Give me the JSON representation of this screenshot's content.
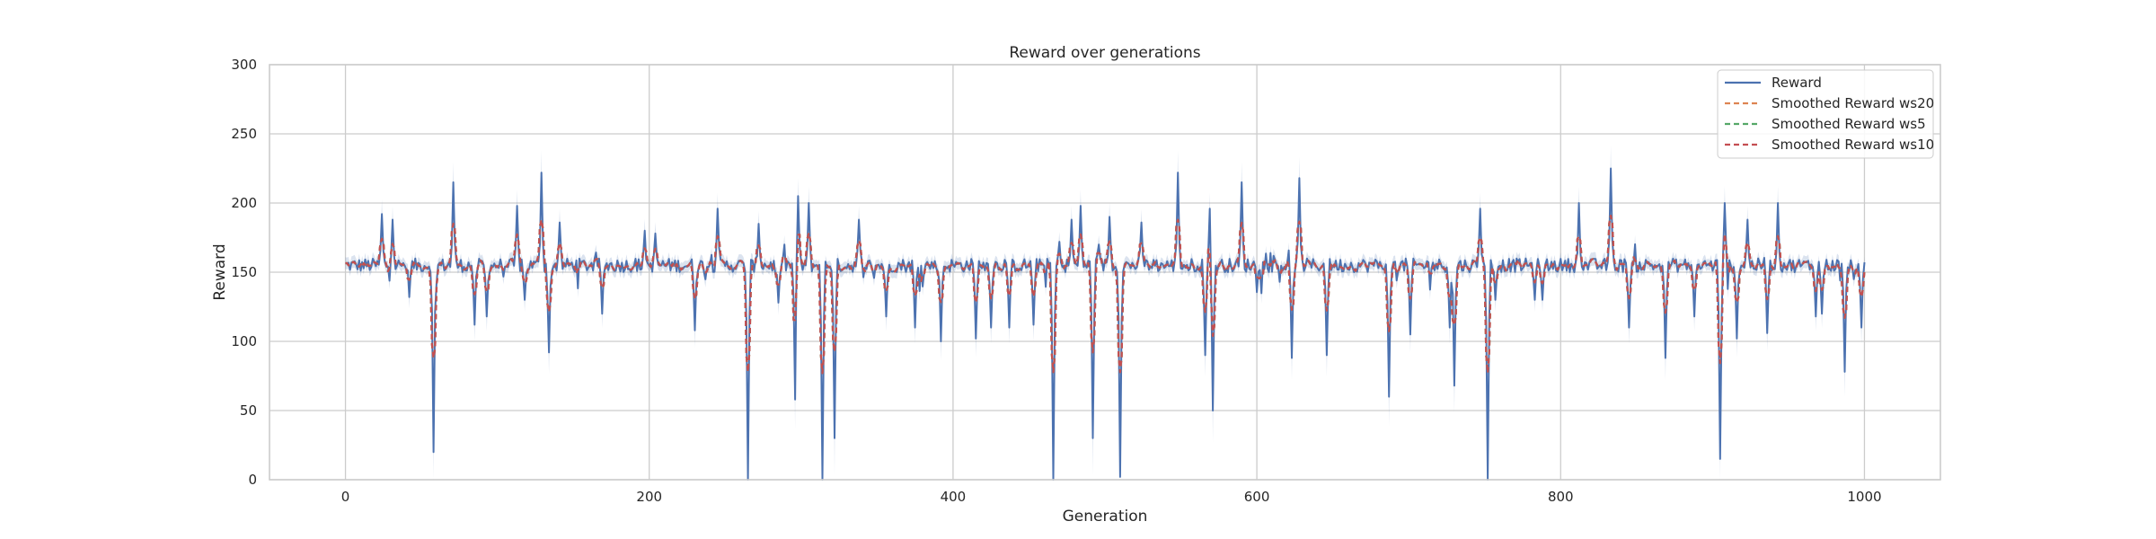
{
  "chart_data": {
    "type": "line",
    "title": "Reward over generations",
    "xlabel": "Generation",
    "ylabel": "Reward",
    "xlim": [
      -50,
      1050
    ],
    "ylim": [
      0,
      300
    ],
    "xticks": [
      0,
      200,
      400,
      600,
      800,
      1000
    ],
    "yticks": [
      0,
      50,
      100,
      150,
      200,
      250,
      300
    ],
    "grid": true,
    "legend_position": "top-right",
    "baseline": 155,
    "spikes": [
      [
        24,
        192
      ],
      [
        31,
        188
      ],
      [
        42,
        132
      ],
      [
        58,
        20
      ],
      [
        71,
        215
      ],
      [
        85,
        112
      ],
      [
        93,
        118
      ],
      [
        113,
        198
      ],
      [
        118,
        130
      ],
      [
        129,
        222
      ],
      [
        134,
        92
      ],
      [
        141,
        186
      ],
      [
        169,
        120
      ],
      [
        197,
        180
      ],
      [
        204,
        178
      ],
      [
        230,
        108
      ],
      [
        245,
        196
      ],
      [
        265,
        0
      ],
      [
        272,
        185
      ],
      [
        285,
        128
      ],
      [
        296,
        58
      ],
      [
        298,
        205
      ],
      [
        305,
        200
      ],
      [
        314,
        0
      ],
      [
        322,
        30
      ],
      [
        338,
        188
      ],
      [
        356,
        118
      ],
      [
        375,
        110
      ],
      [
        392,
        100
      ],
      [
        415,
        102
      ],
      [
        425,
        110
      ],
      [
        437,
        110
      ],
      [
        453,
        112
      ],
      [
        466,
        0
      ],
      [
        470,
        172
      ],
      [
        478,
        188
      ],
      [
        484,
        198
      ],
      [
        492,
        30
      ],
      [
        496,
        170
      ],
      [
        503,
        190
      ],
      [
        510,
        2
      ],
      [
        524,
        186
      ],
      [
        548,
        222
      ],
      [
        566,
        90
      ],
      [
        569,
        196
      ],
      [
        571,
        50
      ],
      [
        590,
        215
      ],
      [
        623,
        88
      ],
      [
        628,
        218
      ],
      [
        646,
        90
      ],
      [
        687,
        60
      ],
      [
        701,
        105
      ],
      [
        727,
        110
      ],
      [
        730,
        68
      ],
      [
        747,
        196
      ],
      [
        752,
        0
      ],
      [
        757,
        130
      ],
      [
        783,
        130
      ],
      [
        788,
        130
      ],
      [
        812,
        200
      ],
      [
        833,
        225
      ],
      [
        845,
        110
      ],
      [
        869,
        88
      ],
      [
        888,
        118
      ],
      [
        905,
        15
      ],
      [
        908,
        200
      ],
      [
        916,
        102
      ],
      [
        923,
        188
      ],
      [
        936,
        106
      ],
      [
        943,
        200
      ],
      [
        968,
        118
      ],
      [
        972,
        120
      ],
      [
        987,
        78
      ],
      [
        993,
        145
      ],
      [
        998,
        110
      ]
    ],
    "series": [
      {
        "name": "Reward",
        "color": "#4c72b0",
        "dash": "solid",
        "smoothing": 1,
        "width": 2
      },
      {
        "name": "Smoothed Reward ws20",
        "color": "#dd8452",
        "dash": "dashed",
        "smoothing": 3,
        "width": 2.2
      },
      {
        "name": "Smoothed Reward ws5",
        "color": "#55a868",
        "dash": "dashed",
        "smoothing": 2,
        "width": 2.2
      },
      {
        "name": "Smoothed Reward ws10",
        "color": "#c44e52",
        "dash": "dashed",
        "smoothing": 3,
        "width": 2.2
      }
    ]
  }
}
